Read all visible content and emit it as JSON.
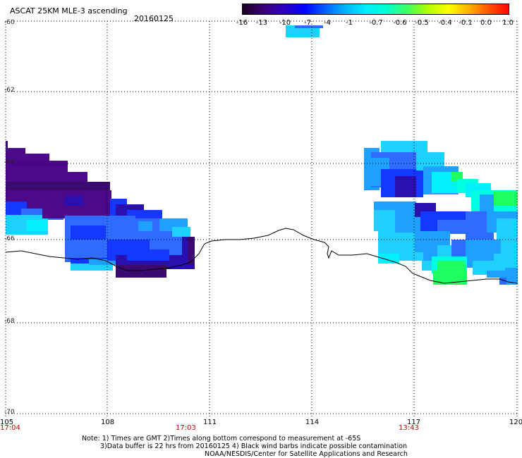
{
  "header": {
    "title": "ASCAT 25KM MLE-3 ascending",
    "date": "20160125"
  },
  "color_scale": {
    "ticks": [
      "-16",
      "-13",
      "-10",
      "-7",
      "-4",
      "-1",
      "-0.7",
      "-0.6",
      "-0.5",
      "-0.4",
      "-0.1",
      "0.0",
      "1.0"
    ],
    "gradient_colors": [
      "#1a0020",
      "#3a0078",
      "#3000c0",
      "#0000ff",
      "#0060ff",
      "#00b4ff",
      "#00eeff",
      "#00ffd0",
      "#40ff60",
      "#b0ff00",
      "#ffff00",
      "#ffb000",
      "#ff5000",
      "#ff0000"
    ]
  },
  "map": {
    "lat_labels": [
      "-60",
      "-62",
      "-64",
      "-66",
      "-68",
      "-70"
    ],
    "lon_labels": [
      "105",
      "108",
      "111",
      "114",
      "117",
      "120"
    ],
    "time_labels": [
      "17:04",
      "17:03",
      "13:43"
    ],
    "colors": {
      "deep_purple": "#3a0a70",
      "dark_purple": "#4a0a8a",
      "violet": "#2a10b0",
      "blue": "#1438ff",
      "mid_blue": "#2f6bff",
      "light_blue": "#1ea0ff",
      "sky": "#1ed0ff",
      "cyan": "#00f0ff",
      "aqua": "#00ffe0",
      "green": "#20ff60",
      "coastline": "#000000",
      "gridline": "#000000"
    }
  },
  "footer": {
    "note_line1": "Note: 1) Times are GMT 2)Times along bottom correspond to measurement at -65S",
    "note_line2": "3)Data buffer is 22 hrs from 20160125 4) Black wind barbs indicate possible contamination",
    "credit": "NOAA/NESDIS/Center for Satellite Applications and Research"
  }
}
